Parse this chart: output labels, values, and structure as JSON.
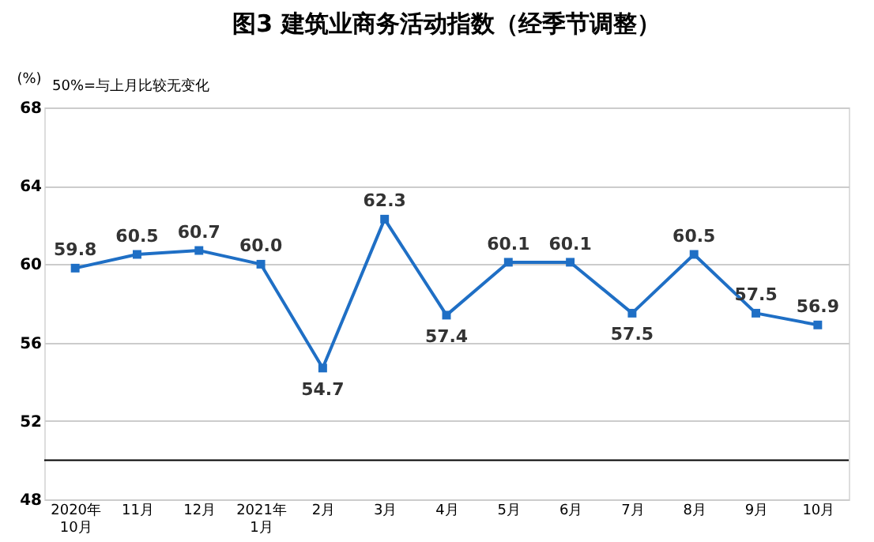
{
  "chart_data": {
    "type": "line",
    "title": "图3  建筑业商务活动指数（经季节调整）",
    "ylabel": "(%)",
    "annotations": [
      "50%=与上月比较无变化"
    ],
    "categories": [
      "2020年\n10月",
      "11月",
      "12月",
      "2021年\n1月",
      "2月",
      "3月",
      "4月",
      "5月",
      "6月",
      "7月",
      "8月",
      "9月",
      "10月"
    ],
    "series": [
      {
        "color": "#1f6fc5",
        "values": [
          59.8,
          60.5,
          60.7,
          60.0,
          54.7,
          62.3,
          57.4,
          60.1,
          60.1,
          57.5,
          60.5,
          57.5,
          56.9
        ],
        "value_labels": [
          "59.8",
          "60.5",
          "60.7",
          "60.0",
          "54.7",
          "62.3",
          "57.4",
          "60.1",
          "60.1",
          "57.5",
          "60.5",
          "57.5",
          "56.9"
        ]
      }
    ],
    "ylim": [
      48,
      68
    ],
    "yticks": [
      48,
      52,
      56,
      60,
      64,
      68
    ],
    "grid": "y",
    "marker": "square",
    "line_style": "solid",
    "ref_lines": [
      {
        "axis": "y",
        "value": 50,
        "color": "#000000"
      }
    ]
  }
}
